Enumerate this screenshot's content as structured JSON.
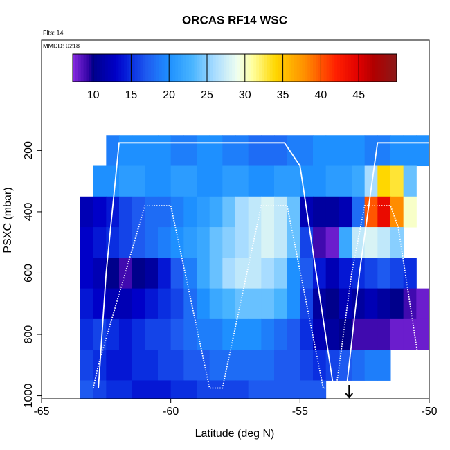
{
  "chart_data": {
    "type": "heatmap",
    "title": "ORCAS RF14 WSC",
    "note_top": "Flts: 14",
    "note_inner": "MMDD: 0218",
    "x_label": "Latitude (deg N)",
    "y_label": "PSXC (mbar)",
    "xlim": [
      -65,
      -50
    ],
    "xticks": [
      -65,
      -60,
      -55,
      -50
    ],
    "ylim": [
      -160,
      1010
    ],
    "yticks": [
      200,
      400,
      600,
      800,
      1000
    ],
    "zlim": [
      7.3,
      50
    ],
    "zticks": [
      10,
      15,
      20,
      25,
      30,
      35,
      40,
      45
    ],
    "colorscale": [
      [
        7.3,
        "#8a2be2"
      ],
      [
        9.5,
        "#2a00a0"
      ],
      [
        10,
        "#00008b"
      ],
      [
        13,
        "#0000c8"
      ],
      [
        15,
        "#0a2ee0"
      ],
      [
        17,
        "#1e5af0"
      ],
      [
        20,
        "#1e90ff"
      ],
      [
        23,
        "#48b4ff"
      ],
      [
        26,
        "#a8dcff"
      ],
      [
        29,
        "#f0fff0"
      ],
      [
        31,
        "#ffffa0"
      ],
      [
        34,
        "#ffd700"
      ],
      [
        38,
        "#ff8c00"
      ],
      [
        42,
        "#ff2000"
      ],
      [
        45,
        "#e00000"
      ],
      [
        47,
        "#b00000"
      ],
      [
        50,
        "#8b1a1a"
      ]
    ],
    "x_edges": [
      -63.5,
      -63,
      -62.5,
      -62,
      -61.5,
      -61,
      -60.5,
      -60,
      -59.5,
      -59,
      -58.5,
      -58,
      -57.5,
      -57,
      -56.5,
      -56,
      -55.5,
      -55,
      -54.5,
      -54,
      -53.5,
      -53,
      -52.5,
      -52,
      -51.5,
      -51,
      -50.5,
      -50
    ],
    "y_edges": [
      150,
      250,
      350,
      450,
      550,
      650,
      750,
      850,
      950,
      1050
    ],
    "z": [
      [
        null,
        null,
        19,
        20,
        20,
        20,
        20,
        19,
        19,
        20,
        20,
        19,
        19,
        18,
        18,
        18,
        19,
        19,
        20,
        20,
        20,
        20,
        19,
        19,
        20,
        20,
        20
      ],
      [
        null,
        20,
        20,
        21,
        21,
        20,
        20,
        21,
        21,
        20,
        20,
        21,
        21,
        20,
        20,
        21,
        21,
        20,
        20,
        21,
        21,
        22,
        26,
        34,
        33,
        24,
        null
      ],
      [
        12,
        13,
        14,
        16,
        17,
        18,
        18,
        19,
        20,
        21,
        22,
        24,
        26,
        27,
        28,
        27,
        24,
        12,
        11,
        11,
        12,
        18,
        40,
        44,
        38,
        30,
        null
      ],
      [
        13,
        14,
        15,
        16,
        17,
        18,
        19,
        20,
        21,
        22,
        24,
        25,
        26,
        27,
        28,
        27,
        24,
        16,
        9,
        8,
        22,
        27,
        28,
        27,
        25,
        null,
        null
      ],
      [
        13,
        12,
        10,
        9,
        10,
        11,
        14,
        17,
        19,
        22,
        24,
        26,
        27,
        27,
        26,
        25,
        20,
        17,
        14,
        12,
        14,
        15,
        16,
        17,
        16,
        15,
        null
      ],
      [
        14,
        13,
        12,
        12,
        13,
        14,
        15,
        16,
        18,
        20,
        22,
        23,
        24,
        24,
        24,
        23,
        20,
        16,
        11,
        10,
        12,
        11,
        12,
        11,
        10,
        9,
        8
      ],
      [
        15,
        16,
        15,
        14,
        15,
        16,
        16,
        17,
        18,
        19,
        19,
        20,
        20,
        20,
        19,
        18,
        17,
        15,
        12,
        11,
        10,
        9,
        9,
        9,
        8,
        8,
        8
      ],
      [
        16,
        15,
        14,
        14,
        15,
        15,
        16,
        16,
        17,
        17,
        18,
        18,
        18,
        18,
        18,
        17,
        17,
        16,
        15,
        16,
        17,
        18,
        19,
        19,
        null,
        null,
        null
      ],
      [
        17,
        16,
        15,
        15,
        14,
        14,
        14,
        15,
        15,
        16,
        16,
        16,
        16,
        17,
        17,
        17,
        17,
        17,
        17,
        null,
        null,
        null,
        null,
        null,
        null,
        null,
        null
      ]
    ],
    "lines": [
      {
        "color": "#ffffff",
        "dash": false,
        "x": [
          -62.8,
          -62.5,
          -62.0,
          -55.6,
          -55.0,
          -53.7,
          -53.2,
          -52.7,
          -52.0,
          -50.0
        ],
        "y": [
          975,
          600,
          175,
          175,
          250,
          975,
          975,
          600,
          175,
          175
        ]
      },
      {
        "color": "#ffffff",
        "dash": true,
        "x": [
          -63.0,
          -62.8,
          -61.0,
          -60.0,
          -58.5,
          -58.0,
          -56.5,
          -55.5,
          -54.1,
          -53.6,
          -53.0,
          -52.5,
          -51.5,
          -51.2,
          -50.2
        ],
        "y": [
          975,
          900,
          380,
          380,
          975,
          975,
          380,
          380,
          975,
          975,
          600,
          380,
          380,
          450,
          1000
        ]
      }
    ],
    "arrow_x": -53.1
  }
}
